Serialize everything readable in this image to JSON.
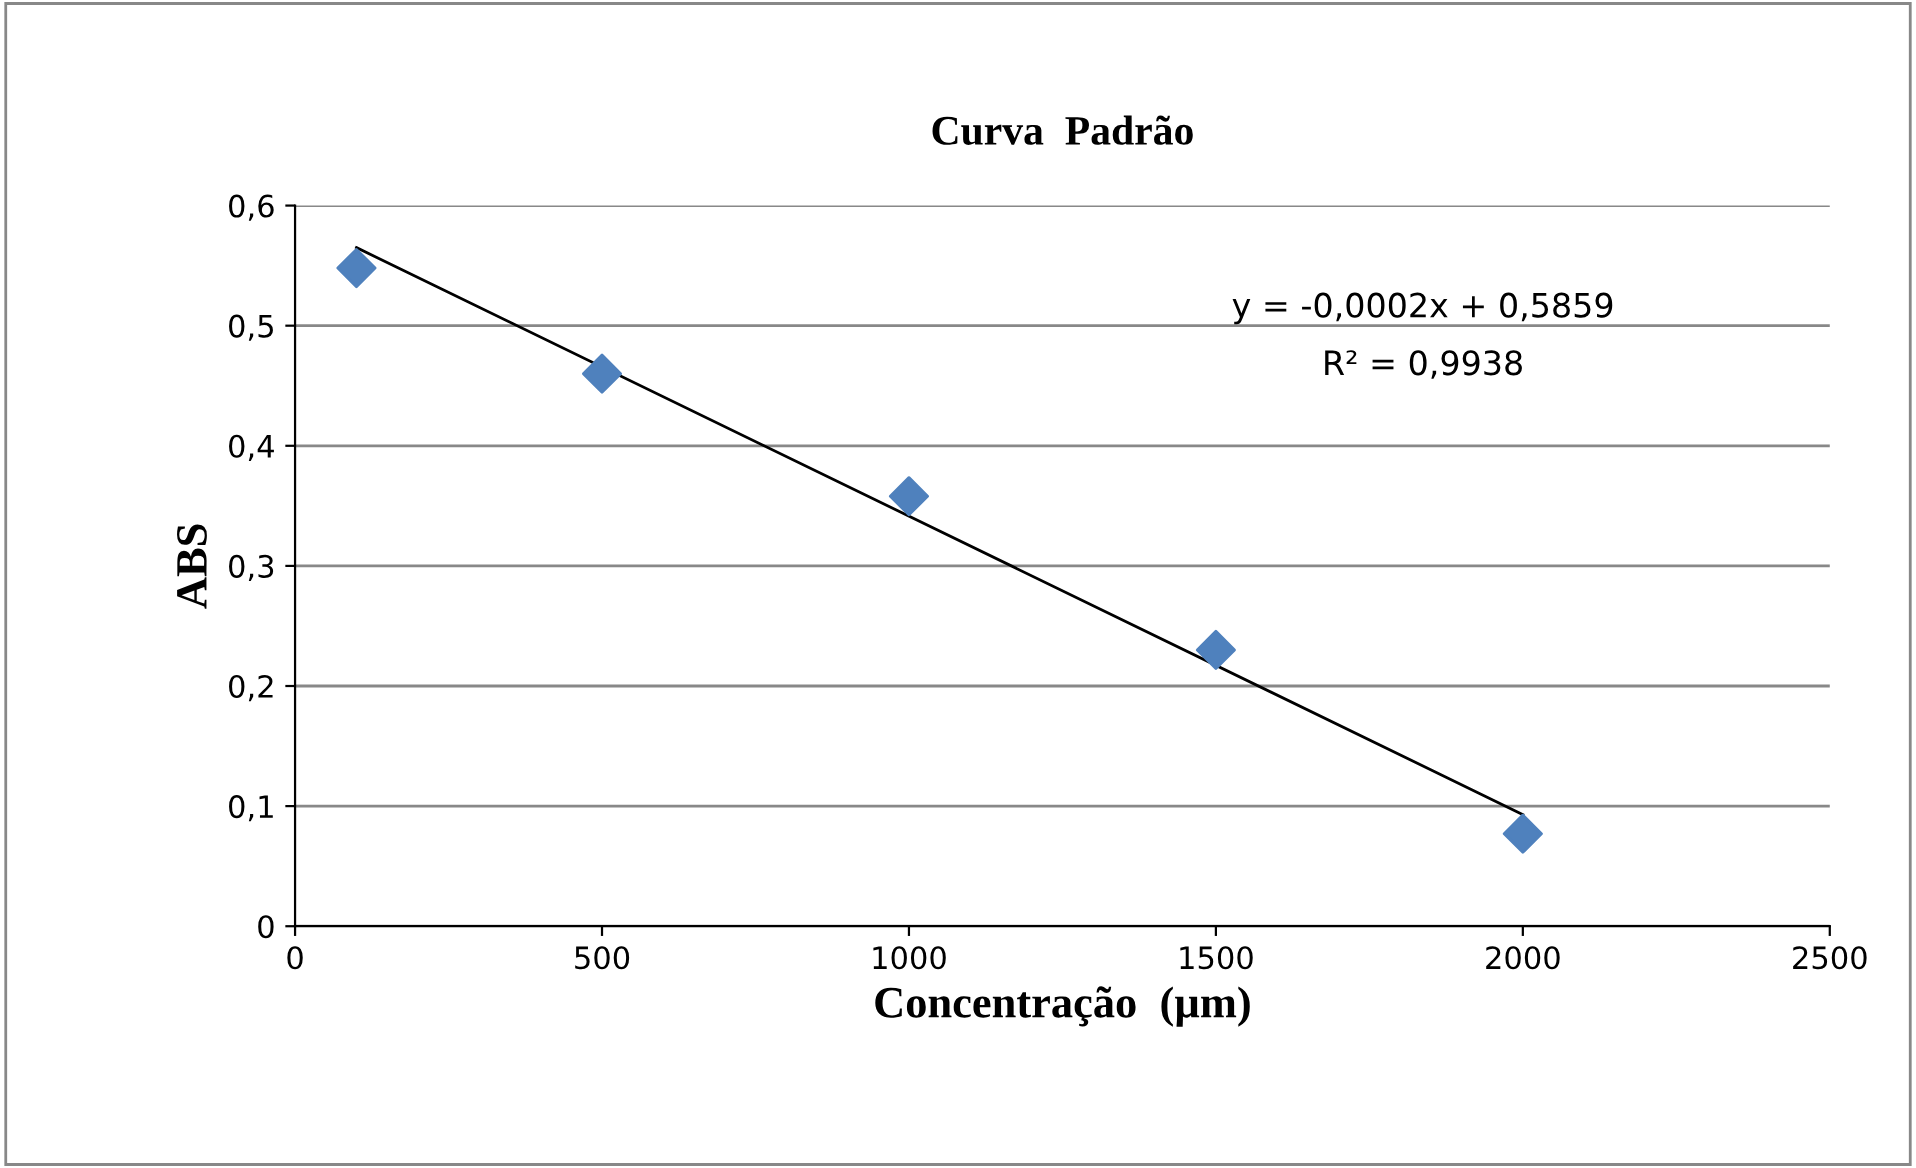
{
  "chart_data": {
    "type": "scatter",
    "title": "Curva  Padrão",
    "xlabel": "Concentração  (µm)",
    "ylabel": "ABS",
    "xlim": [
      0,
      2500
    ],
    "xticks": [
      0,
      500,
      1000,
      1500,
      2000,
      2500
    ],
    "ylim": [
      0,
      0.6
    ],
    "yticks": [
      {
        "value": 0,
        "label": "0"
      },
      {
        "value": 0.1,
        "label": "0,1"
      },
      {
        "value": 0.2,
        "label": "0,2"
      },
      {
        "value": 0.3,
        "label": "0,3"
      },
      {
        "value": 0.4,
        "label": "0,4"
      },
      {
        "value": 0.5,
        "label": "0,5"
      },
      {
        "value": 0.6,
        "label": "0,6"
      }
    ],
    "grid": "y",
    "legend": false,
    "marker": "diamond",
    "series": [
      {
        "color": "#4f81bd",
        "x": [
          100,
          500,
          1000,
          1500,
          2000
        ],
        "values": [
          0.548,
          0.46,
          0.358,
          0.23,
          0.077
        ]
      },
      {
        "type": "line",
        "color": "#000000",
        "marker": "none",
        "line_style": "solid",
        "x": [
          100,
          2000
        ],
        "values": [
          0.565,
          0.093
        ]
      }
    ],
    "annotations": [
      "y = -0,0002x + 0,5859",
      "R² = 0,9938"
    ]
  }
}
